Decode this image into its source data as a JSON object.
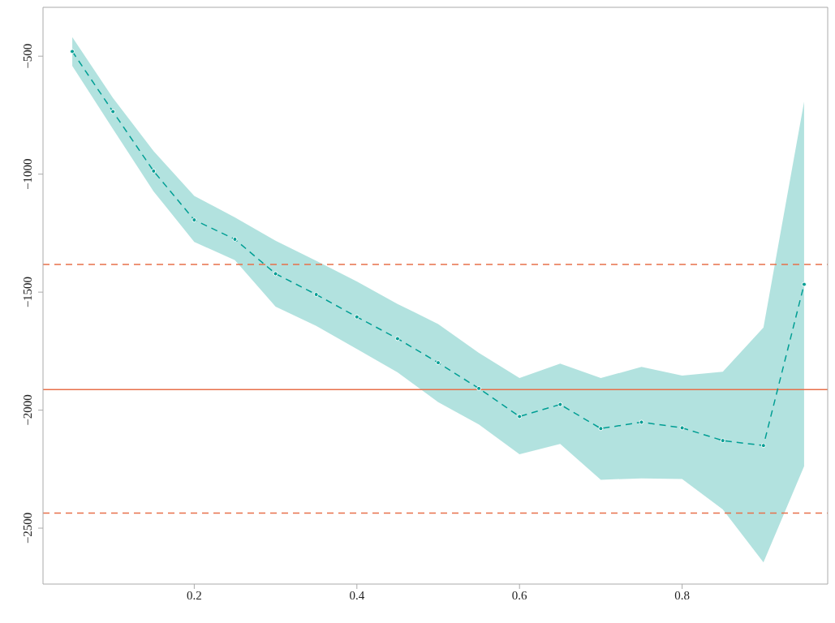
{
  "chart_data": {
    "type": "line",
    "x": [
      0.05,
      0.1,
      0.15,
      0.2,
      0.25,
      0.3,
      0.35,
      0.4,
      0.45,
      0.5,
      0.55,
      0.6,
      0.65,
      0.7,
      0.75,
      0.8,
      0.85,
      0.9,
      0.95
    ],
    "series": [
      {
        "color": "#009e94",
        "values": [
          -480,
          -735,
          -987,
          -1194,
          -1276,
          -1422,
          -1510,
          -1605,
          -1697,
          -1799,
          -1908,
          -2027,
          -1976,
          -2078,
          -2051,
          -2075,
          -2129,
          -2150,
          -1467
        ],
        "lower": [
          -541,
          -809,
          -1073,
          -1287,
          -1365,
          -1561,
          -1643,
          -1741,
          -1840,
          -1966,
          -2061,
          -2187,
          -2143,
          -2295,
          -2289,
          -2292,
          -2421,
          -2645,
          -2238
        ],
        "upper": [
          -419,
          -677,
          -902,
          -1092,
          -1183,
          -1282,
          -1367,
          -1455,
          -1550,
          -1635,
          -1757,
          -1864,
          -1803,
          -1864,
          -1817,
          -1854,
          -1837,
          -1650,
          -693
        ]
      }
    ],
    "xlim": [
      0.014,
      0.979
    ],
    "xticks": [
      0.2,
      0.4,
      0.6,
      0.8
    ],
    "ylim": [
      -2737,
      -293
    ],
    "yticks": [
      -500,
      -1000,
      -1500,
      -2000,
      -2500
    ],
    "ref_lines": [
      {
        "axis": "y",
        "value": -1383,
        "color": "#e8704a",
        "line_style": "dashed"
      },
      {
        "axis": "y",
        "value": -1913,
        "color": "#e8704a",
        "line_style": "solid"
      },
      {
        "axis": "y",
        "value": -2436,
        "color": "#e8704a",
        "line_style": "dashed"
      }
    ],
    "grid": false,
    "legend": false,
    "marker": "circle",
    "line_style": "dashed"
  }
}
